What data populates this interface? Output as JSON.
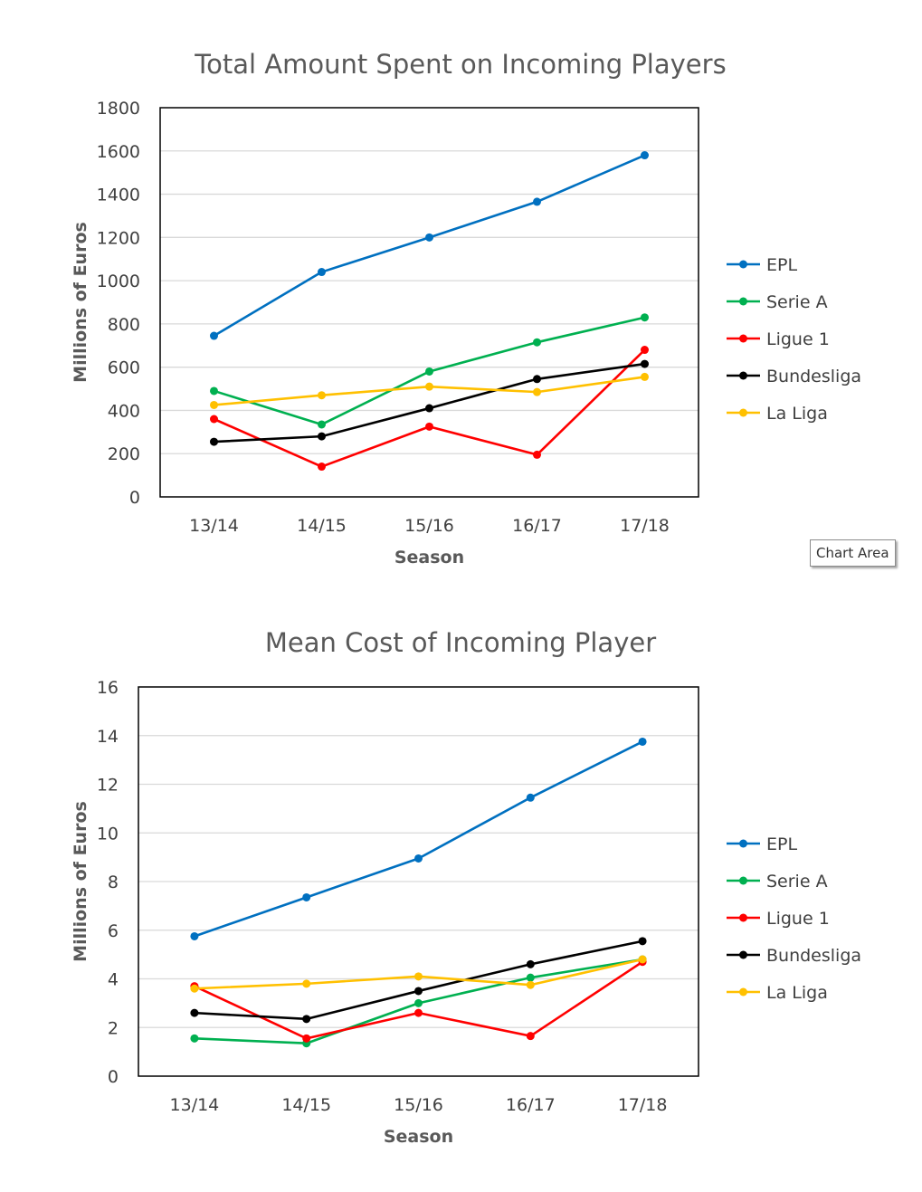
{
  "tooltip": {
    "text": "Chart Area"
  },
  "chart_data": [
    {
      "type": "line",
      "title": "Total Amount Spent on Incoming Players",
      "xlabel": "Season",
      "ylabel": "Millions of Euros",
      "categories": [
        "13/14",
        "14/15",
        "15/16",
        "16/17",
        "17/18"
      ],
      "ylim": [
        0,
        1800
      ],
      "yticks": [
        0,
        200,
        400,
        600,
        800,
        1000,
        1200,
        1400,
        1600,
        1800
      ],
      "grid": true,
      "legend": "right",
      "series": [
        {
          "name": "EPL",
          "color": "#0070c0",
          "values": [
            745,
            1040,
            1200,
            1365,
            1580
          ]
        },
        {
          "name": "Serie A",
          "color": "#00b050",
          "values": [
            490,
            335,
            580,
            715,
            830
          ]
        },
        {
          "name": "Ligue 1",
          "color": "#ff0000",
          "values": [
            360,
            140,
            325,
            195,
            680
          ]
        },
        {
          "name": "Bundesliga",
          "color": "#000000",
          "values": [
            255,
            280,
            410,
            545,
            615
          ]
        },
        {
          "name": "La Liga",
          "color": "#ffc000",
          "values": [
            425,
            470,
            510,
            485,
            555
          ]
        }
      ]
    },
    {
      "type": "line",
      "title": "Mean Cost of Incoming Player",
      "xlabel": "Season",
      "ylabel": "Millions of Euros",
      "categories": [
        "13/14",
        "14/15",
        "15/16",
        "16/17",
        "17/18"
      ],
      "ylim": [
        0,
        16
      ],
      "yticks": [
        0,
        2,
        4,
        6,
        8,
        10,
        12,
        14,
        16
      ],
      "grid": true,
      "legend": "right",
      "series": [
        {
          "name": "EPL",
          "color": "#0070c0",
          "values": [
            5.75,
            7.35,
            8.95,
            11.45,
            13.75
          ]
        },
        {
          "name": "Serie A",
          "color": "#00b050",
          "values": [
            1.55,
            1.35,
            3.0,
            4.05,
            4.8
          ]
        },
        {
          "name": "Ligue 1",
          "color": "#ff0000",
          "values": [
            3.7,
            1.55,
            2.6,
            1.65,
            4.7
          ]
        },
        {
          "name": "Bundesliga",
          "color": "#000000",
          "values": [
            2.6,
            2.35,
            3.5,
            4.6,
            5.55
          ]
        },
        {
          "name": "La Liga",
          "color": "#ffc000",
          "values": [
            3.6,
            3.8,
            4.1,
            3.75,
            4.8
          ]
        }
      ]
    }
  ]
}
